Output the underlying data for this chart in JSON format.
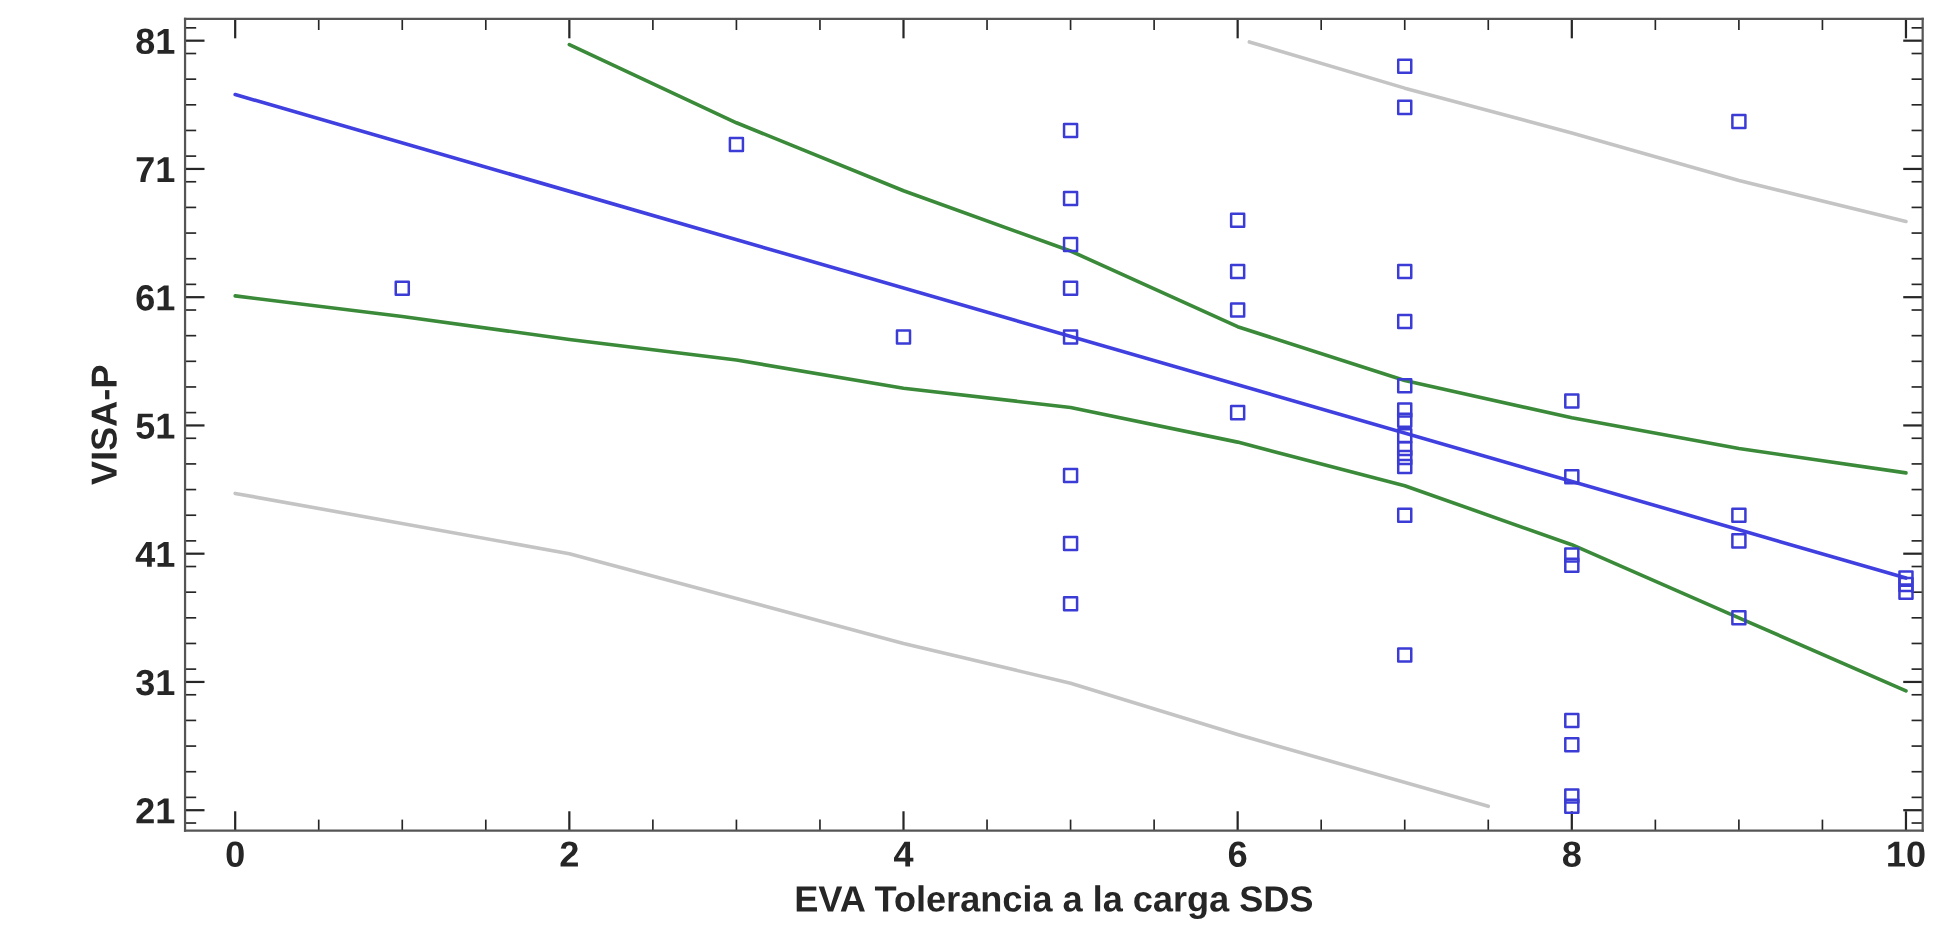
{
  "chart_data": {
    "type": "scatter",
    "xlabel": "EVA Tolerancia a la carga SDS",
    "ylabel": "VISA-P",
    "xlim": [
      -0.3,
      10.1
    ],
    "ylim": [
      19.4,
      82.7
    ],
    "xticks": [
      0,
      2,
      4,
      6,
      8,
      10
    ],
    "yticks": [
      21,
      31,
      41,
      51,
      61,
      71,
      81
    ],
    "grid": false,
    "legend": false,
    "marker": "square",
    "series": [
      {
        "color": "#3b3bd6",
        "x": [
          1,
          3,
          4,
          5,
          5,
          5,
          5,
          5,
          5,
          5,
          5,
          6,
          6,
          6,
          6,
          7,
          7,
          7,
          7,
          7,
          7,
          7,
          7,
          7,
          7,
          7,
          7,
          7,
          8,
          8,
          8,
          8,
          8,
          8,
          8,
          8,
          9,
          9,
          9,
          9,
          10,
          10,
          10
        ],
        "values": [
          61.7,
          72.9,
          57.9,
          74.0,
          68.7,
          65.1,
          61.7,
          57.9,
          47.1,
          41.8,
          37.1,
          67.0,
          63.0,
          60.0,
          52.0,
          79.0,
          75.8,
          63.0,
          59.1,
          54.1,
          52.2,
          51.4,
          50.2,
          49.2,
          48.5,
          47.8,
          44.0,
          33.1,
          52.9,
          47.0,
          40.9,
          40.1,
          28.0,
          26.1,
          22.1,
          21.3,
          74.7,
          44.0,
          42.0,
          36.0,
          39.1,
          38.6,
          38.0
        ]
      },
      {
        "type": "line",
        "color": "#4040e0",
        "marker": "none",
        "line_style": "solid",
        "x": [
          0,
          10
        ],
        "values": [
          76.8,
          39.1
        ]
      },
      {
        "type": "line",
        "color": "#3a8a3a",
        "marker": "none",
        "line_style": "solid",
        "x": [
          2,
          3,
          4,
          5,
          6,
          7,
          8,
          9,
          10
        ],
        "values": [
          80.7,
          74.6,
          69.3,
          64.6,
          58.7,
          54.5,
          51.6,
          49.2,
          47.3
        ]
      },
      {
        "type": "line",
        "color": "#3a8a3a",
        "marker": "none",
        "line_style": "solid",
        "x": [
          0,
          1,
          2,
          3,
          4,
          5,
          6,
          7,
          8,
          9,
          10
        ],
        "values": [
          61.1,
          59.5,
          57.7,
          56.1,
          53.9,
          52.4,
          49.7,
          46.3,
          41.7,
          36.0,
          30.3
        ]
      },
      {
        "type": "line",
        "color": "#c4c4c4",
        "marker": "none",
        "line_style": "solid",
        "x": [
          6.07,
          7,
          8,
          9,
          10
        ],
        "values": [
          80.9,
          77.3,
          73.8,
          70.1,
          66.9
        ]
      },
      {
        "type": "line",
        "color": "#c4c4c4",
        "marker": "none",
        "line_style": "solid",
        "x": [
          0,
          2,
          4,
          5,
          6,
          7.5
        ],
        "values": [
          45.7,
          41.0,
          34.0,
          30.9,
          26.9,
          21.3
        ]
      }
    ]
  }
}
